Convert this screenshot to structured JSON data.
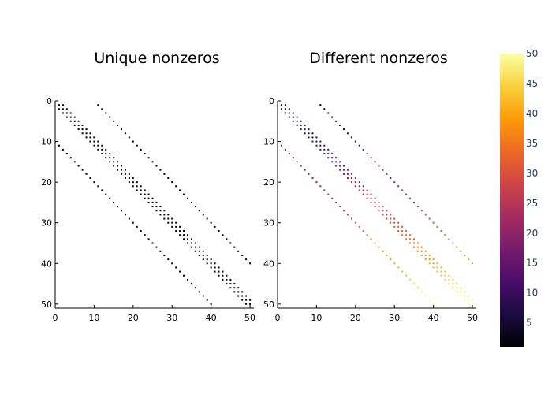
{
  "chart_data": [
    {
      "type": "scatter",
      "kind": "sparsity-pattern",
      "title": "Unique nonzeros",
      "xlim": [
        0,
        51
      ],
      "ylim": [
        51,
        0
      ],
      "xticks": [
        0,
        10,
        20,
        30,
        40,
        50
      ],
      "yticks": [
        0,
        10,
        20,
        30,
        40,
        50
      ],
      "marker_color": "#000000",
      "pattern": {
        "main_band": {
          "rows": [
            1,
            50
          ],
          "offsets": [
            -1,
            0,
            1
          ]
        },
        "upper_band": {
          "rows": [
            1,
            40
          ],
          "column_offset": 10
        },
        "lower_band": {
          "rows": [
            11,
            50
          ],
          "column_offset": -10
        }
      }
    },
    {
      "type": "scatter",
      "kind": "sparsity-pattern",
      "title": "Different nonzeros",
      "xlim": [
        0,
        51
      ],
      "ylim": [
        51,
        0
      ],
      "xticks": [
        0,
        10,
        20,
        30,
        40,
        50
      ],
      "yticks": [
        0,
        10,
        20,
        30,
        40,
        50
      ],
      "color_by": "value (approx. row index)",
      "colormap": "inferno",
      "pattern": {
        "main_band": {
          "rows": [
            1,
            50
          ],
          "offsets": [
            -1,
            0,
            1
          ]
        },
        "upper_band": {
          "rows": [
            1,
            40
          ],
          "column_offset": 10
        },
        "lower_band": {
          "rows": [
            11,
            50
          ],
          "column_offset": -10
        }
      }
    }
  ],
  "colorbar": {
    "range": [
      1,
      50
    ],
    "ticks": [
      5,
      10,
      15,
      20,
      25,
      30,
      35,
      40,
      45,
      50
    ],
    "colormap": "inferno",
    "stops": [
      "#000004",
      "#1b0c41",
      "#4a0c6b",
      "#781c6d",
      "#a52c60",
      "#cf4446",
      "#ed6925",
      "#fb9b06",
      "#f7d13d",
      "#fcffa4"
    ]
  }
}
